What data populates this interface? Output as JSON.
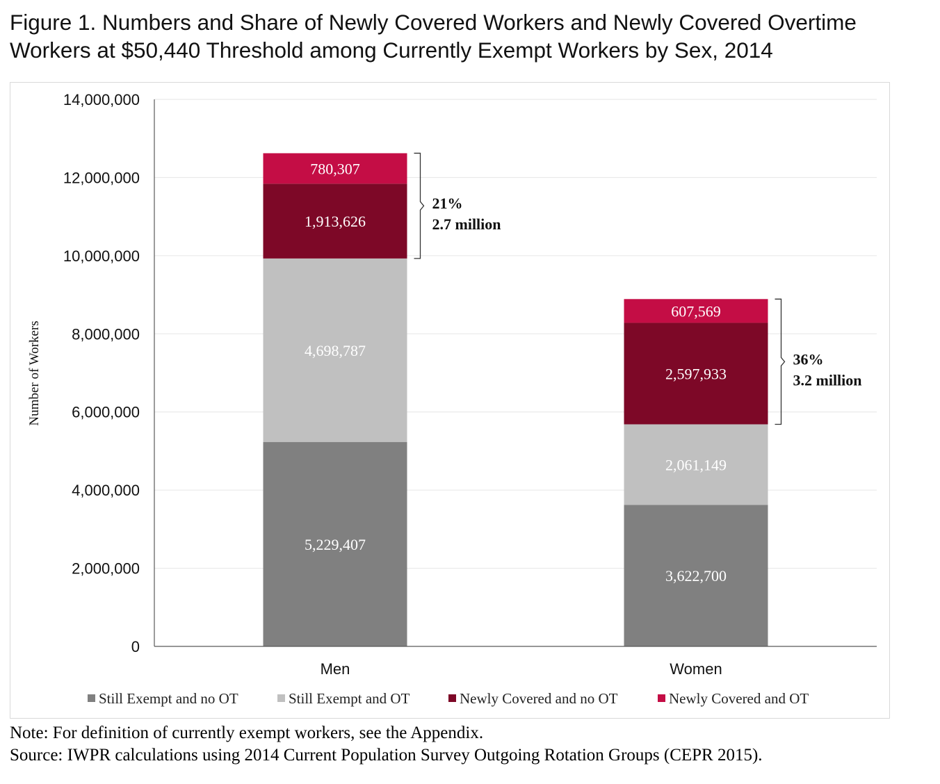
{
  "title": {
    "line1": "Figure 1. Numbers and Share of Newly Covered Workers and Newly Covered Overtime",
    "line2": "Workers at $50,440 Threshold among Currently Exempt Workers by Sex, 2014"
  },
  "notes": {
    "note": "Note: For definition of currently exempt workers, see the Appendix.",
    "source": "Source: IWPR calculations using 2014 Current Population Survey Outgoing Rotation Groups (CEPR 2015)."
  },
  "chart_data": {
    "type": "bar",
    "stacked": true,
    "categories": [
      "Men",
      "Women"
    ],
    "ylabel": "Number of Workers",
    "xlabel": "",
    "ylim": [
      0,
      14000000
    ],
    "yticks": [
      0,
      2000000,
      4000000,
      6000000,
      8000000,
      10000000,
      12000000,
      14000000
    ],
    "ytick_labels": [
      "0",
      "2,000,000",
      "4,000,000",
      "6,000,000",
      "8,000,000",
      "10,000,000",
      "12,000,000",
      "14,000,000"
    ],
    "grid": true,
    "legend_position": "bottom",
    "series": [
      {
        "name": "Still Exempt and no OT",
        "color": "#808080",
        "values": [
          5229407,
          3622700
        ],
        "labels": [
          "5,229,407",
          "3,622,700"
        ]
      },
      {
        "name": "Still Exempt and OT",
        "color": "#c0c0c0",
        "values": [
          4698787,
          2061149
        ],
        "labels": [
          "4,698,787",
          "2,061,149"
        ]
      },
      {
        "name": "Newly Covered and no OT",
        "color": "#7d0827",
        "values": [
          1913626,
          2597933
        ],
        "labels": [
          "1,913,626",
          "2,597,933"
        ]
      },
      {
        "name": "Newly Covered and OT",
        "color": "#c40d45",
        "values": [
          780307,
          607569
        ],
        "labels": [
          "780,307",
          "607,569"
        ]
      }
    ],
    "annotations": [
      {
        "category": "Men",
        "line1": "21%",
        "line2": "2.7 million"
      },
      {
        "category": "Women",
        "line1": "36%",
        "line2": "3.2 million"
      }
    ]
  }
}
